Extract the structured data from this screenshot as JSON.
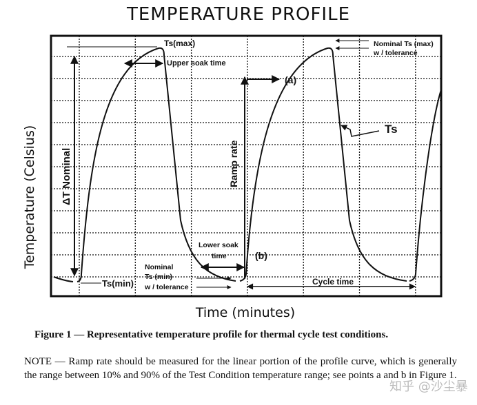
{
  "figure": {
    "title": "TEMPERATURE PROFILE",
    "y_axis_label": "Temperature (Celsius)",
    "x_axis_label": "Time (minutes)",
    "annotations": {
      "ts_max": "Ts(max)",
      "upper_soak": "Upper soak time",
      "delta_t": "ΔT Nominal",
      "ramp_rate": "Ramp rate",
      "point_a": "(a)",
      "point_b": "(b)",
      "nominal_ts_max_1": "Nominal Ts (max)",
      "nominal_ts_max_2": "w / tolerance",
      "ts": "Ts",
      "lower_soak_1": "Lower soak",
      "lower_soak_2": "time",
      "nominal_ts_min_1": "Nominal",
      "nominal_ts_min_2": "Ts (min)",
      "nominal_ts_min_3": "w / tolerance",
      "ts_min": "Ts(min)",
      "cycle_time": "Cycle time"
    }
  },
  "caption": "Figure 1 — Representative temperature profile for thermal cycle test conditions.",
  "note": "NOTE — Ramp rate should be measured for the linear portion of the profile curve, which is generally the range between 10% and 90% of the Test Condition temperature range; see points a and b in Figure 1.",
  "watermark": "知乎 @沙尘暴"
}
